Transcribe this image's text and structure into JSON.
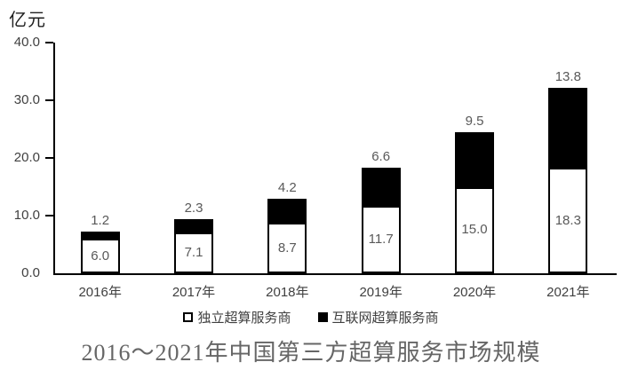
{
  "page": {
    "background": "#ffffff"
  },
  "chart_data": {
    "type": "bar",
    "stacked": true,
    "title": "2016～2021年中国第三方超算服务市场规模",
    "unit_label": "亿元",
    "xlabel": "",
    "ylabel": "亿元",
    "ylim": [
      0,
      40
    ],
    "yticks": [
      "0.0",
      "10.0",
      "20.0",
      "30.0",
      "40.0"
    ],
    "grid": false,
    "legend_position": "bottom",
    "categories": [
      "2016年",
      "2017年",
      "2018年",
      "2019年",
      "2020年",
      "2021年"
    ],
    "series": [
      {
        "name": "独立超算服务商",
        "color": "#ffffff",
        "border_color": "#000000",
        "values": [
          6.0,
          7.1,
          8.7,
          11.7,
          15.0,
          18.3
        ],
        "label_placement": "inside"
      },
      {
        "name": "互联网超算服务商",
        "color": "#000000",
        "values": [
          1.2,
          2.3,
          4.2,
          6.6,
          9.5,
          13.8
        ],
        "label_placement": "above"
      }
    ],
    "colors": {
      "axis": "#000000",
      "tick_label": "#404040",
      "value_label": "#595959",
      "title": "#666666"
    }
  }
}
